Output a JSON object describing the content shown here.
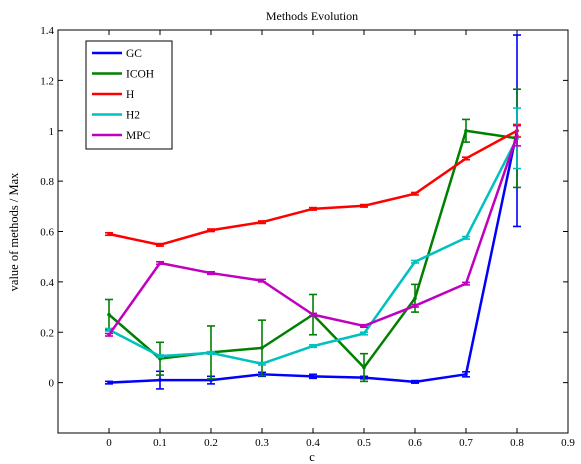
{
  "chart_data": {
    "type": "line",
    "title": "Methods Evolution",
    "xlabel": "c",
    "ylabel": "value of methods / Max",
    "xlim": [
      -0.1,
      0.9
    ],
    "ylim": [
      -0.2,
      1.4
    ],
    "xticks": [
      0,
      0.1,
      0.2,
      0.3,
      0.4,
      0.5,
      0.6,
      0.7,
      0.8,
      0.9
    ],
    "xtick_labels": [
      "0",
      "0.1",
      "0.2",
      "0.3",
      "0.4",
      "0.5",
      "0.6",
      "0.7",
      "0.8",
      "0.9"
    ],
    "yticks": [
      0,
      0.2,
      0.4,
      0.6,
      0.8,
      1.0,
      1.2,
      1.4
    ],
    "ytick_labels": [
      "0",
      "0.2",
      "0.4",
      "0.6",
      "0.8",
      "1",
      "1.2",
      "1.4"
    ],
    "grid": false,
    "legend_position": "top-left",
    "x": [
      0,
      0.1,
      0.2,
      0.3,
      0.4,
      0.5,
      0.6,
      0.7,
      0.8
    ],
    "series": [
      {
        "name": "GC",
        "color": "#0000ff",
        "values": [
          0.0,
          0.01,
          0.01,
          0.033,
          0.025,
          0.02,
          0.003,
          0.033,
          1.0
        ],
        "errors": [
          0.005,
          0.035,
          0.015,
          0.008,
          0.008,
          0.005,
          0.005,
          0.01,
          0.38
        ]
      },
      {
        "name": "ICOH",
        "color": "#008000",
        "values": [
          0.27,
          0.095,
          0.12,
          0.138,
          0.27,
          0.06,
          0.335,
          1.0,
          0.97
        ],
        "errors": [
          0.06,
          0.065,
          0.105,
          0.11,
          0.08,
          0.055,
          0.055,
          0.045,
          0.195
        ]
      },
      {
        "name": "H",
        "color": "#ff0000",
        "values": [
          0.59,
          0.547,
          0.605,
          0.637,
          0.69,
          0.702,
          0.75,
          0.89,
          1.0
        ],
        "errors": [
          0.005,
          0.005,
          0.005,
          0.005,
          0.005,
          0.005,
          0.005,
          0.005,
          0.025
        ]
      },
      {
        "name": "H2",
        "color": "#00c0c0",
        "values": [
          0.21,
          0.105,
          0.118,
          0.075,
          0.145,
          0.195,
          0.48,
          0.575,
          0.97
        ],
        "errors": [
          0.005,
          0.005,
          0.005,
          0.005,
          0.005,
          0.005,
          0.005,
          0.005,
          0.12
        ]
      },
      {
        "name": "MPC",
        "color": "#c000c0",
        "values": [
          0.19,
          0.475,
          0.435,
          0.405,
          0.27,
          0.225,
          0.305,
          0.393,
          0.98
        ],
        "errors": [
          0.005,
          0.005,
          0.005,
          0.005,
          0.005,
          0.005,
          0.005,
          0.005,
          0.04
        ]
      }
    ]
  }
}
